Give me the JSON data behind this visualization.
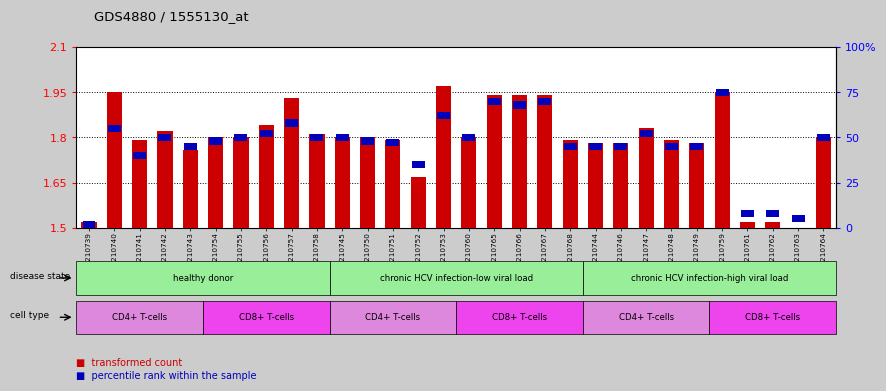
{
  "title": "GDS4880 / 1555130_at",
  "samples": [
    "GSM1210739",
    "GSM1210740",
    "GSM1210741",
    "GSM1210742",
    "GSM1210743",
    "GSM1210754",
    "GSM1210755",
    "GSM1210756",
    "GSM1210757",
    "GSM1210758",
    "GSM1210745",
    "GSM1210750",
    "GSM1210751",
    "GSM1210752",
    "GSM1210753",
    "GSM1210760",
    "GSM1210765",
    "GSM1210766",
    "GSM1210767",
    "GSM1210768",
    "GSM1210744",
    "GSM1210746",
    "GSM1210747",
    "GSM1210748",
    "GSM1210749",
    "GSM1210759",
    "GSM1210761",
    "GSM1210762",
    "GSM1210763",
    "GSM1210764"
  ],
  "transformed_count": [
    1.52,
    1.95,
    1.79,
    1.82,
    1.76,
    1.8,
    1.8,
    1.84,
    1.93,
    1.81,
    1.8,
    1.8,
    1.79,
    1.67,
    1.97,
    1.8,
    1.94,
    1.94,
    1.94,
    1.79,
    1.78,
    1.78,
    1.83,
    1.79,
    1.78,
    1.95,
    1.52,
    1.52,
    1.5,
    1.8
  ],
  "percentile_rank": [
    2,
    55,
    40,
    50,
    45,
    48,
    50,
    52,
    58,
    50,
    50,
    48,
    47,
    35,
    62,
    50,
    70,
    68,
    70,
    45,
    45,
    45,
    52,
    45,
    45,
    75,
    8,
    8,
    5,
    50
  ],
  "ylim_left": [
    1.5,
    2.1
  ],
  "ylim_right": [
    0,
    100
  ],
  "yticks_left": [
    1.5,
    1.65,
    1.8,
    1.95,
    2.1
  ],
  "yticks_right": [
    0,
    25,
    50,
    75,
    100
  ],
  "ytick_labels_right": [
    "0",
    "25",
    "50",
    "75",
    "100%"
  ],
  "bar_color": "#cc0000",
  "percentile_color": "#0000bb",
  "bg_color": "#cccccc",
  "plot_bg": "#ffffff",
  "disease_groups": [
    {
      "label": "healthy donor",
      "start": 0,
      "end": 9,
      "color": "#99ee99"
    },
    {
      "label": "chronic HCV infection-low viral load",
      "start": 10,
      "end": 19,
      "color": "#99ee99"
    },
    {
      "label": "chronic HCV infection-high viral load",
      "start": 20,
      "end": 29,
      "color": "#99ee99"
    }
  ],
  "cell_type_groups": [
    {
      "label": "CD4+ T-cells",
      "start": 0,
      "end": 4,
      "color": "#dd88dd"
    },
    {
      "label": "CD8+ T-cells",
      "start": 5,
      "end": 9,
      "color": "#ee44ee"
    },
    {
      "label": "CD4+ T-cells",
      "start": 10,
      "end": 14,
      "color": "#dd88dd"
    },
    {
      "label": "CD8+ T-cells",
      "start": 15,
      "end": 19,
      "color": "#ee44ee"
    },
    {
      "label": "CD4+ T-cells",
      "start": 20,
      "end": 24,
      "color": "#dd88dd"
    },
    {
      "label": "CD8+ T-cells",
      "start": 25,
      "end": 29,
      "color": "#ee44ee"
    }
  ]
}
